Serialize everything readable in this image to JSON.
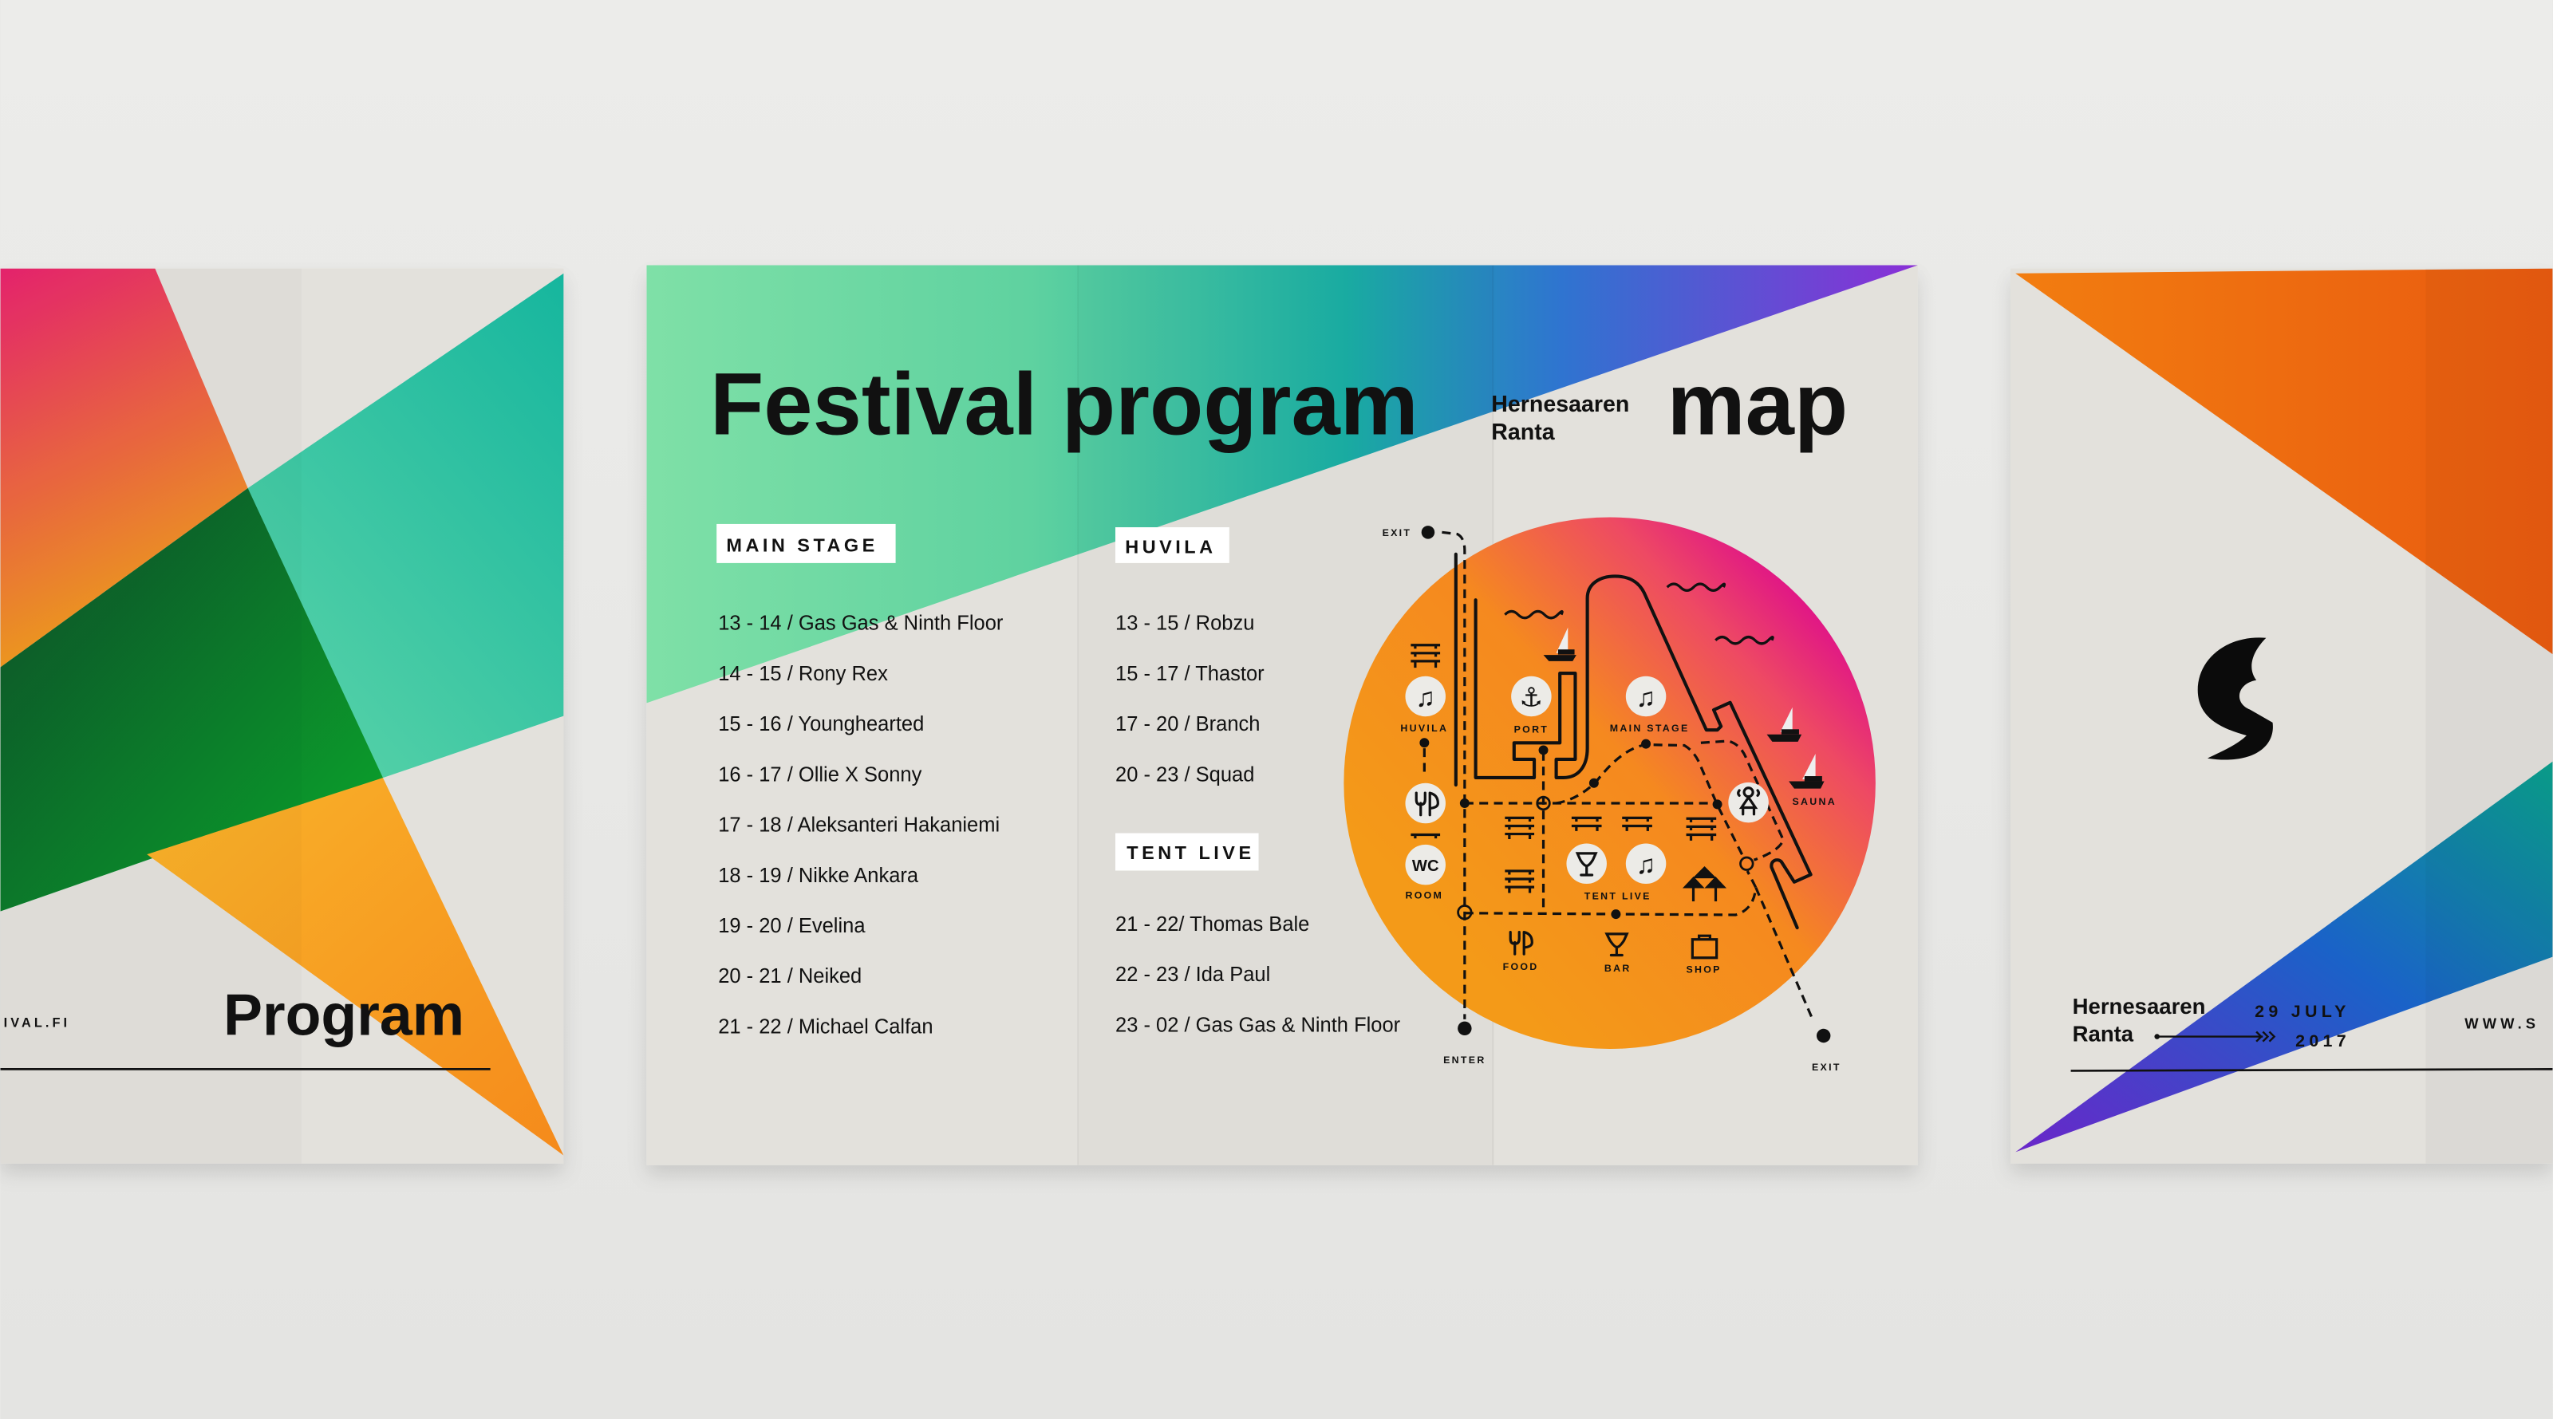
{
  "left_panel": {
    "website_fragment": "IVAL.FI",
    "title": "Program"
  },
  "program": {
    "title": "Festival program",
    "stages": [
      {
        "name": "MAIN STAGE",
        "slots": [
          "13 - 14 / Gas Gas & Ninth Floor",
          "14 - 15 / Rony Rex",
          "15 - 16 / Younghearted",
          "16 - 17 / Ollie X Sonny",
          "17 - 18 / Aleksanteri Hakaniemi",
          "18 - 19 / Nikke Ankara",
          "19 - 20 / Evelina",
          "20 - 21 / Neiked",
          "21 - 22 / Michael Calfan"
        ]
      },
      {
        "name": "HUVILA",
        "slots": [
          "13 - 15 / Robzu",
          "15 - 17 / Thastor",
          "17 - 20 / Branch",
          "20 - 23 / Squad"
        ]
      },
      {
        "name": "TENT LIVE",
        "slots": [
          "21 - 22/ Thomas Bale",
          "22 - 23 / Ida Paul",
          "23 - 02 / Gas Gas & Ninth Floor"
        ]
      }
    ]
  },
  "map_panel": {
    "location_line1": "Hernesaaren",
    "location_line2": "Ranta",
    "title": "map",
    "labels": {
      "exit_top": "EXIT",
      "exit_bottom": "EXIT",
      "enter": "ENTER",
      "huvila": "HUVILA",
      "port": "PORT",
      "main_stage": "MAIN STAGE",
      "sauna": "SAUNA",
      "room": "ROOM",
      "wc": "WC",
      "tent_live": "TENT LIVE",
      "food": "FOOD",
      "bar": "BAR",
      "shop": "SHOP"
    },
    "icons": [
      "music-note-icon",
      "anchor-icon",
      "fork-knife-icon",
      "sauna-person-icon",
      "cocktail-glass-icon",
      "shopping-bag-icon",
      "tent-icon",
      "sailboat-icon",
      "bench-icon",
      "wave-icon"
    ]
  },
  "right_panel": {
    "location_line1": "Hernesaaren",
    "location_line2": "Ranta",
    "date_line1": "29 JULY",
    "date_line2": "2017",
    "website_fragment": "WWW.S",
    "logo": "S"
  },
  "colors": {
    "background": "#e9e9e7",
    "paper": "#e3e1dc",
    "ink": "#111111",
    "green": "#7ddfa8",
    "teal": "#19b4a2",
    "blue": "#2f6fd3",
    "purple": "#8a2fd6",
    "orange": "#f59a1c",
    "magenta": "#e0168a"
  }
}
